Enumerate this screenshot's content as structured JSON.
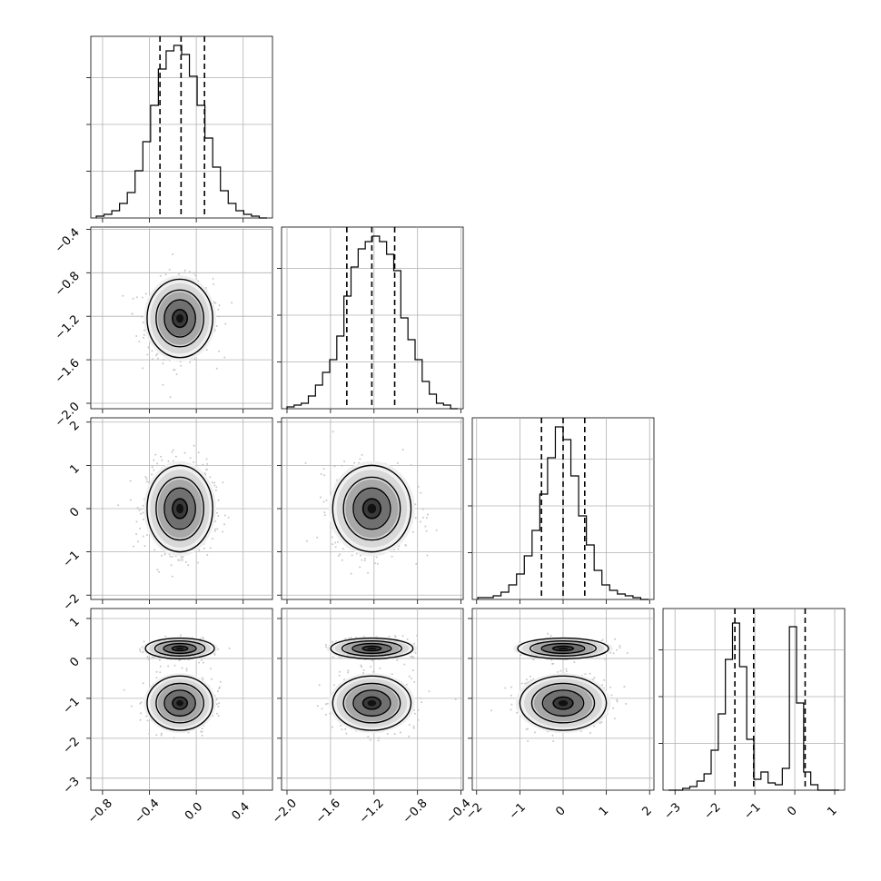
{
  "chart_data": {
    "type": "corner",
    "grid": true,
    "colors": {
      "points": "#c8c8c8",
      "lines": "#000000",
      "grid": "#b0b0b0"
    },
    "parameters": [
      {
        "index": 0,
        "mean": -0.14,
        "sigma": 0.14,
        "range": [
          -0.9,
          0.65
        ],
        "ticks": [
          -0.8,
          -0.4,
          0.0,
          0.4
        ],
        "tick_labels": [
          "−0.8",
          "−0.4",
          "0.0",
          "0.4"
        ],
        "quantiles": [
          -0.31,
          -0.13,
          0.07
        ],
        "hist": {
          "bins": 22,
          "peak": 0.95,
          "counts": [
            0.01,
            0.02,
            0.04,
            0.08,
            0.14,
            0.26,
            0.42,
            0.62,
            0.82,
            0.92,
            0.95,
            0.9,
            0.78,
            0.62,
            0.44,
            0.28,
            0.15,
            0.08,
            0.04,
            0.02,
            0.01,
            0.0
          ]
        }
      },
      {
        "index": 1,
        "mean": -1.22,
        "sigma": 0.18,
        "range": [
          -2.05,
          -0.38
        ],
        "ticks": [
          -2.0,
          -1.6,
          -1.2,
          -0.8,
          -0.4
        ],
        "tick_labels": [
          "−2.0",
          "−1.6",
          "−1.2",
          "−0.8",
          "−0.4"
        ],
        "quantiles": [
          -1.45,
          -1.22,
          -1.01
        ],
        "hist": {
          "bins": 24,
          "peak": 0.95,
          "counts": [
            0.01,
            0.02,
            0.03,
            0.07,
            0.13,
            0.2,
            0.27,
            0.4,
            0.62,
            0.78,
            0.88,
            0.92,
            0.95,
            0.92,
            0.85,
            0.76,
            0.5,
            0.38,
            0.27,
            0.15,
            0.08,
            0.03,
            0.02,
            0.0
          ]
        }
      },
      {
        "index": 2,
        "mean": 0.0,
        "sigma": 0.5,
        "range": [
          -2.1,
          2.1
        ],
        "ticks": [
          -2,
          -1,
          0,
          1,
          2
        ],
        "tick_labels": [
          "−2",
          "−1",
          "0",
          "1",
          "2"
        ],
        "quantiles": [
          -0.5,
          0.0,
          0.5
        ],
        "hist": {
          "bins": 22,
          "peak": 0.95,
          "counts": [
            0.01,
            0.01,
            0.02,
            0.04,
            0.08,
            0.14,
            0.24,
            0.38,
            0.58,
            0.78,
            0.95,
            0.88,
            0.68,
            0.46,
            0.3,
            0.16,
            0.08,
            0.05,
            0.03,
            0.02,
            0.01,
            0.0
          ]
        }
      },
      {
        "index": 3,
        "range": [
          -3.3,
          1.25
        ],
        "ticks": [
          -3,
          -2,
          -1,
          0,
          1
        ],
        "tick_labels": [
          "−3",
          "−2",
          "−1",
          "0",
          "1"
        ],
        "quantiles": [
          -1.5,
          -1.03,
          0.26
        ],
        "modes": [
          {
            "mean": -1.12,
            "sigma": 0.34,
            "weight": 0.68,
            "y_sigma_scale": 0.65
          },
          {
            "mean": 0.25,
            "sigma": 0.13,
            "weight": 0.32,
            "y_sigma_scale": 0.2
          }
        ],
        "hist": {
          "bins": 24,
          "peak": 0.92,
          "counts": [
            0.0,
            0.0,
            0.01,
            0.02,
            0.05,
            0.09,
            0.22,
            0.42,
            0.72,
            0.92,
            0.68,
            0.28,
            0.06,
            0.1,
            0.04,
            0.03,
            0.12,
            0.9,
            0.48,
            0.1,
            0.03,
            0.0,
            0.0,
            0.0
          ]
        }
      }
    ]
  }
}
